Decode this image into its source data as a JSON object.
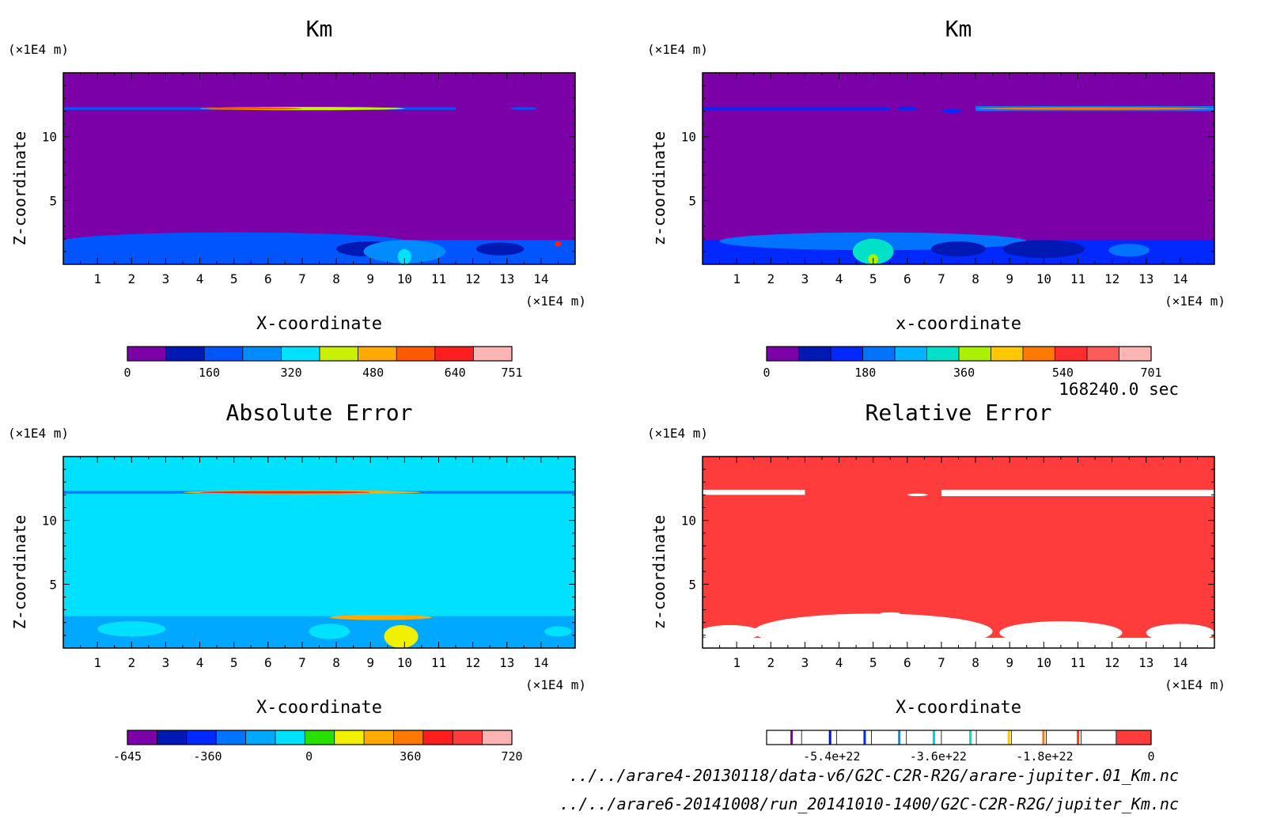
{
  "figure": {
    "time_label": "168240.0 sec",
    "files": [
      "../../arare4-20130118/data-v6/G2C-C2R-R2G/arare-jupiter.01_Km.nc",
      "../../arare6-20141008/run_20141010-1400/G2C-C2R-R2G/jupiter_Km.nc"
    ]
  },
  "chart_data": [
    {
      "type": "heatmap",
      "title": "Km",
      "xlabel": "X-coordinate",
      "ylabel": "Z-coordinate",
      "x_unit": "(×1E4 m)",
      "y_unit": "(×1E4 m)",
      "xlim": [
        0,
        15
      ],
      "ylim": [
        0,
        15
      ],
      "x_ticks": [
        1,
        2,
        3,
        4,
        5,
        6,
        7,
        8,
        9,
        10,
        11,
        12,
        13,
        14
      ],
      "y_ticks": [
        5,
        10
      ],
      "background_level": 0,
      "colorbar": {
        "colors": [
          "#7b00a8",
          "#0019b4",
          "#0055ff",
          "#008cff",
          "#00e1ff",
          "#c8f000",
          "#ffaa00",
          "#ff5a00",
          "#ff1e1e",
          "#ffb4b4"
        ],
        "tick_labels": [
          "0",
          "160",
          "320",
          "480",
          "640",
          "751"
        ],
        "tick_values": [
          0,
          160,
          320,
          480,
          640,
          751
        ],
        "min": 0,
        "max": 751
      },
      "features": [
        {
          "kind": "band",
          "x": [
            0,
            11.5
          ],
          "z": [
            12.1,
            12.3
          ],
          "level": 2
        },
        {
          "kind": "blob",
          "x": 7.0,
          "z": 12.2,
          "rx": 3.0,
          "rz": 0.13,
          "level": 5
        },
        {
          "kind": "blob",
          "x": 5.5,
          "z": 12.2,
          "rx": 1.5,
          "rz": 0.06,
          "level": 7
        },
        {
          "kind": "blob",
          "x": 13.5,
          "z": 12.2,
          "rx": 0.4,
          "rz": 0.1,
          "level": 2
        },
        {
          "kind": "band",
          "x": [
            0,
            15
          ],
          "z": [
            0,
            1.9
          ],
          "level": 2
        },
        {
          "kind": "blob",
          "x": 5.0,
          "z": 1.8,
          "rx": 5.0,
          "rz": 0.7,
          "level": 2
        },
        {
          "kind": "blob",
          "x": 9.0,
          "z": 1.2,
          "rx": 1.0,
          "rz": 0.6,
          "level": 1
        },
        {
          "kind": "blob",
          "x": 10.0,
          "z": 1.0,
          "rx": 1.2,
          "rz": 0.9,
          "level": 3
        },
        {
          "kind": "blob",
          "x": 10.0,
          "z": 0.6,
          "rx": 0.2,
          "rz": 0.6,
          "level": 4
        },
        {
          "kind": "blob",
          "x": 12.8,
          "z": 1.2,
          "rx": 0.7,
          "rz": 0.5,
          "level": 1
        },
        {
          "kind": "blob",
          "x": 14.5,
          "z": 1.6,
          "rx": 0.1,
          "rz": 0.2,
          "level": 8
        }
      ]
    },
    {
      "type": "heatmap",
      "title": "Km",
      "xlabel": "x-coordinate",
      "ylabel": "z-coordinate",
      "x_unit": "(×1E4 m)",
      "y_unit": "(×1E4 m)",
      "xlim": [
        0,
        15
      ],
      "ylim": [
        0,
        15
      ],
      "x_ticks": [
        1,
        2,
        3,
        4,
        5,
        6,
        7,
        8,
        9,
        10,
        11,
        12,
        13,
        14
      ],
      "y_ticks": [
        5,
        10
      ],
      "background_level": 0,
      "colorbar": {
        "colors": [
          "#7b00a8",
          "#0019b4",
          "#0028ff",
          "#0073ff",
          "#00b4ff",
          "#00e1c8",
          "#aaf000",
          "#ffc800",
          "#ff7800",
          "#ff2d2d",
          "#ff5a5a",
          "#ffb4b4"
        ],
        "tick_labels": [
          "0",
          "180",
          "360",
          "540",
          "701"
        ],
        "tick_values": [
          0,
          180,
          360,
          540,
          701
        ],
        "min": 0,
        "max": 701
      },
      "features": [
        {
          "kind": "band",
          "x": [
            0,
            5.5
          ],
          "z": [
            12.1,
            12.3
          ],
          "level": 2
        },
        {
          "kind": "blob",
          "x": 6.0,
          "z": 12.2,
          "rx": 0.3,
          "rz": 0.15,
          "level": 2
        },
        {
          "kind": "blob",
          "x": 7.3,
          "z": 12.0,
          "rx": 0.3,
          "rz": 0.15,
          "level": 2
        },
        {
          "kind": "band",
          "x": [
            8,
            15
          ],
          "z": [
            12.0,
            12.4
          ],
          "level": 3
        },
        {
          "kind": "blob",
          "x": 11.5,
          "z": 12.2,
          "rx": 3.5,
          "rz": 0.1,
          "level": 8
        },
        {
          "kind": "band",
          "x": [
            0,
            15
          ],
          "z": [
            0,
            1.9
          ],
          "level": 2
        },
        {
          "kind": "blob",
          "x": 5.0,
          "z": 1.8,
          "rx": 4.5,
          "rz": 0.7,
          "level": 3
        },
        {
          "kind": "blob",
          "x": 5.0,
          "z": 1.0,
          "rx": 0.6,
          "rz": 1.0,
          "level": 5
        },
        {
          "kind": "blob",
          "x": 5.0,
          "z": 0.4,
          "rx": 0.15,
          "rz": 0.4,
          "level": 6
        },
        {
          "kind": "blob",
          "x": 7.5,
          "z": 1.2,
          "rx": 0.8,
          "rz": 0.6,
          "level": 1
        },
        {
          "kind": "blob",
          "x": 10.0,
          "z": 1.2,
          "rx": 1.2,
          "rz": 0.7,
          "level": 1
        },
        {
          "kind": "blob",
          "x": 12.5,
          "z": 1.1,
          "rx": 0.6,
          "rz": 0.5,
          "level": 3
        }
      ]
    },
    {
      "type": "heatmap",
      "title": "Absolute Error",
      "xlabel": "X-coordinate",
      "ylabel": "Z-coordinate",
      "x_unit": "(×1E4 m)",
      "y_unit": "(×1E4 m)",
      "xlim": [
        0,
        15
      ],
      "ylim": [
        0,
        15
      ],
      "x_ticks": [
        1,
        2,
        3,
        4,
        5,
        6,
        7,
        8,
        9,
        10,
        11,
        12,
        13,
        14
      ],
      "y_ticks": [
        5,
        10
      ],
      "background_level": 5,
      "colorbar": {
        "colors": [
          "#7b00a8",
          "#0019b4",
          "#0028ff",
          "#0073ff",
          "#00a8ff",
          "#00e1ff",
          "#28e000",
          "#f0f000",
          "#ffaa00",
          "#ff7800",
          "#ff1e1e",
          "#ff3c3c",
          "#ffb4b4"
        ],
        "tick_labels": [
          "-645",
          "-360",
          "0",
          "360",
          "720"
        ],
        "tick_values": [
          -645,
          -360,
          0,
          360,
          720
        ],
        "min": -645,
        "max": 720
      },
      "features": [
        {
          "kind": "band",
          "x": [
            0,
            15
          ],
          "z": [
            12.1,
            12.3
          ],
          "level": 3
        },
        {
          "kind": "blob",
          "x": 7.0,
          "z": 12.2,
          "rx": 3.5,
          "rz": 0.15,
          "level": 8
        },
        {
          "kind": "blob",
          "x": 6.5,
          "z": 12.2,
          "rx": 2.5,
          "rz": 0.07,
          "level": 10
        },
        {
          "kind": "band",
          "x": [
            0,
            15
          ],
          "z": [
            0,
            2.5
          ],
          "level": 4
        },
        {
          "kind": "blob",
          "x": 2.0,
          "z": 1.5,
          "rx": 1.0,
          "rz": 0.6,
          "level": 5
        },
        {
          "kind": "blob",
          "x": 7.8,
          "z": 1.3,
          "rx": 0.6,
          "rz": 0.6,
          "level": 5
        },
        {
          "kind": "blob",
          "x": 9.3,
          "z": 2.4,
          "rx": 1.5,
          "rz": 0.2,
          "level": 8
        },
        {
          "kind": "blob",
          "x": 9.9,
          "z": 0.9,
          "rx": 0.5,
          "rz": 0.9,
          "level": 7
        },
        {
          "kind": "blob",
          "x": 14.5,
          "z": 1.3,
          "rx": 0.4,
          "rz": 0.4,
          "level": 5
        }
      ]
    },
    {
      "type": "heatmap",
      "title": "Relative Error",
      "xlabel": "X-coordinate",
      "ylabel": "z-coordinate",
      "x_unit": "(×1E4 m)",
      "y_unit": "(×1E4 m)",
      "xlim": [
        0,
        15
      ],
      "ylim": [
        0,
        15
      ],
      "x_ticks": [
        1,
        2,
        3,
        4,
        5,
        6,
        7,
        8,
        9,
        10,
        11,
        12,
        13,
        14
      ],
      "y_ticks": [
        5,
        10
      ],
      "background_level": 10,
      "colorbar": {
        "colors": [
          "#ffffff",
          "#ffffff",
          "#ffffff",
          "#ffffff",
          "#ffffff",
          "#ffffff",
          "#ffffff",
          "#ffffff",
          "#ffffff",
          "#ffffff",
          "#ff3c3c"
        ],
        "lines": [
          {
            "frac": 0.065,
            "color": "#7b00a8"
          },
          {
            "frac": 0.165,
            "color": "#0019b4"
          },
          {
            "frac": 0.255,
            "color": "#0028ff"
          },
          {
            "frac": 0.345,
            "color": "#008cff"
          },
          {
            "frac": 0.435,
            "color": "#00c8ff"
          },
          {
            "frac": 0.53,
            "color": "#00e1c8"
          },
          {
            "frac": 0.63,
            "color": "#ffc800"
          },
          {
            "frac": 0.72,
            "color": "#ff7800"
          },
          {
            "frac": 0.81,
            "color": "#ff3c00"
          }
        ],
        "tick_labels": [
          "-5.4e+22",
          "-3.6e+22",
          "-1.8e+22",
          "0"
        ],
        "tick_values": [
          -5.4e+22,
          -3.6e+22,
          -1.8e+22,
          0
        ],
        "min": -6.5e+22,
        "max": 0
      },
      "features": [
        {
          "kind": "band",
          "x": [
            0,
            3.0
          ],
          "z": [
            12.0,
            12.4
          ],
          "level": 9
        },
        {
          "kind": "blob",
          "x": 1.5,
          "z": 12.2,
          "rx": 0.4,
          "rz": 0.05,
          "level": 6
        },
        {
          "kind": "blob",
          "x": 6.3,
          "z": 12.0,
          "rx": 0.3,
          "rz": 0.1,
          "level": 9
        },
        {
          "kind": "band",
          "x": [
            7,
            15
          ],
          "z": [
            11.9,
            12.4
          ],
          "level": 9
        },
        {
          "kind": "blob",
          "x": 12.8,
          "z": 12.1,
          "rx": 0.3,
          "rz": 0.1,
          "level": 3
        },
        {
          "kind": "blob",
          "x": 10.5,
          "z": 12.1,
          "rx": 0.5,
          "rz": 0.06,
          "level": 6
        },
        {
          "kind": "blob",
          "x": 14,
          "z": 12.2,
          "rx": 0.5,
          "rz": 0.1,
          "level": 6
        },
        {
          "kind": "band",
          "x": [
            0,
            15
          ],
          "z": [
            0,
            0.8
          ],
          "level": 9
        },
        {
          "kind": "blob",
          "x": 5.0,
          "z": 1.3,
          "rx": 3.5,
          "rz": 1.4,
          "level": 9
        },
        {
          "kind": "blob",
          "x": 10.5,
          "z": 1.2,
          "rx": 1.8,
          "rz": 0.9,
          "level": 9
        },
        {
          "kind": "blob",
          "x": 14,
          "z": 1.2,
          "rx": 1.0,
          "rz": 0.7,
          "level": 9
        },
        {
          "kind": "blob",
          "x": 0.8,
          "z": 1.2,
          "rx": 0.9,
          "rz": 0.6,
          "level": 9
        },
        {
          "kind": "blob",
          "x": 5.5,
          "z": 2.7,
          "rx": 0.3,
          "rz": 0.1,
          "level": 7
        }
      ]
    }
  ]
}
